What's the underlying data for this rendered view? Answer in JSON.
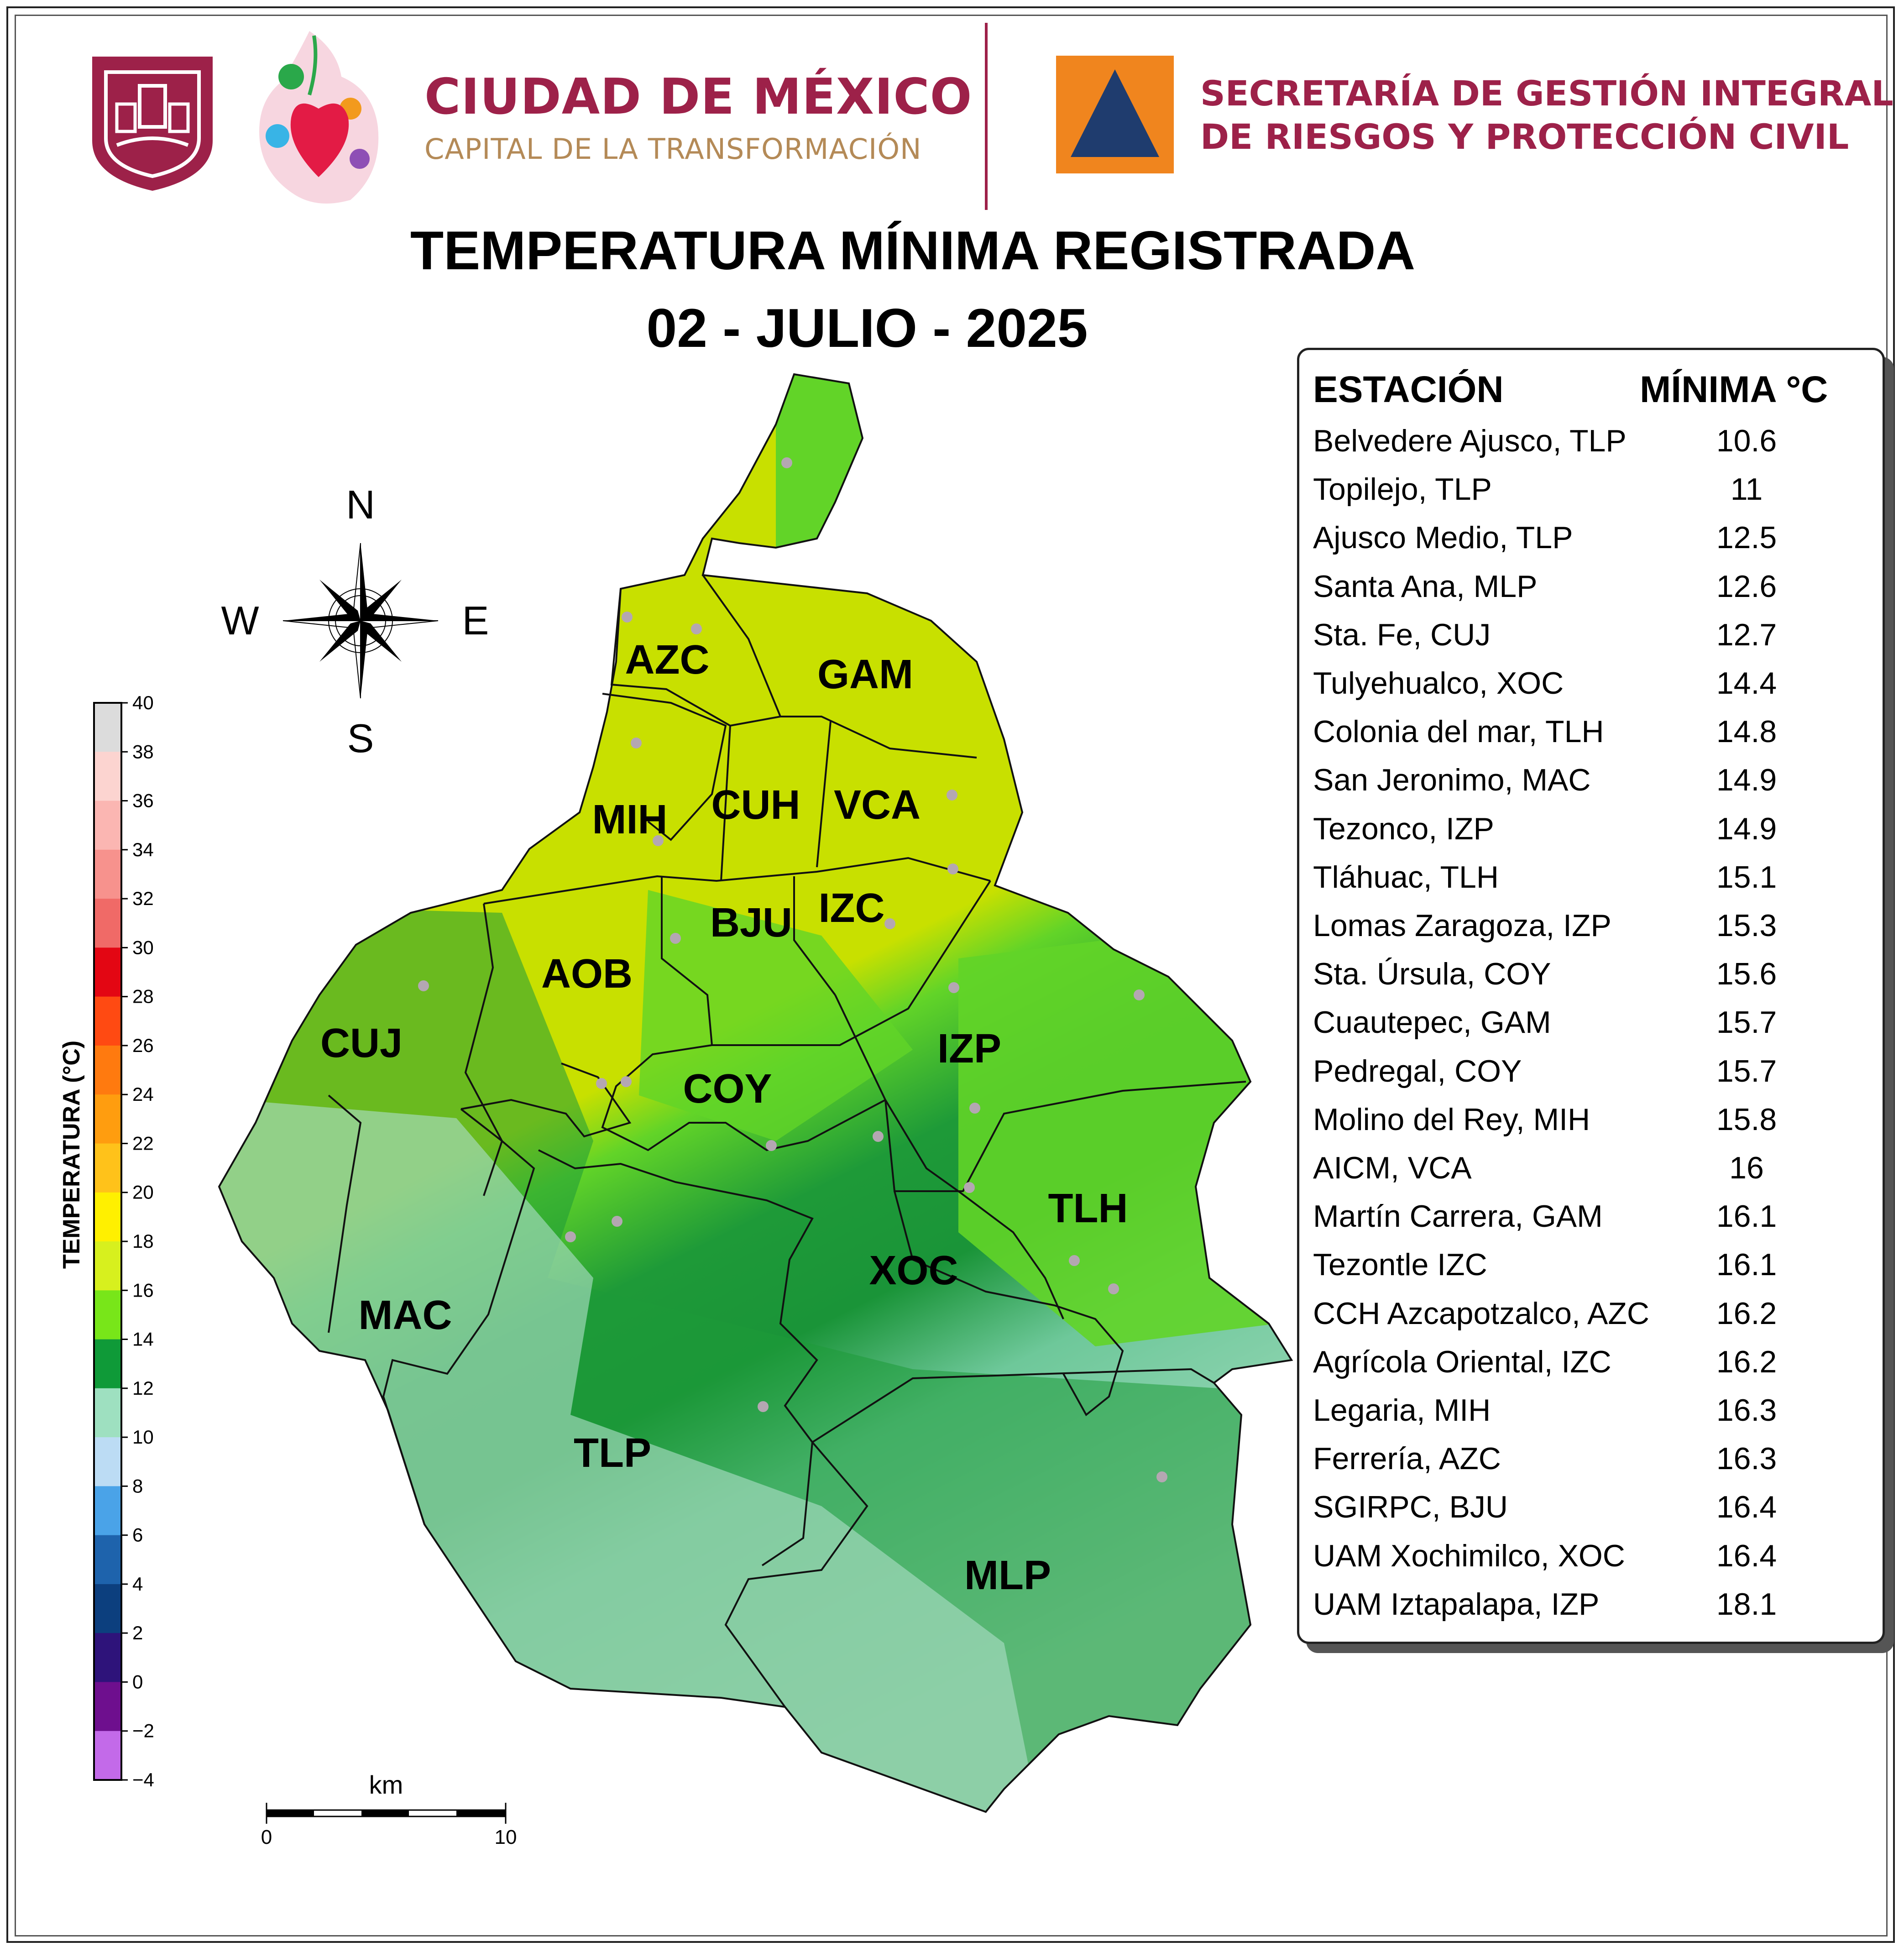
{
  "header": {
    "city_name": "CIUDAD DE MÉXICO",
    "city_tagline": "CAPITAL DE LA TRANSFORMACIÓN",
    "agency_line1": "SECRETARÍA DE GESTIÓN INTEGRAL",
    "agency_line2": "DE RIESGOS Y PROTECCIÓN CIVIL",
    "brand_color": "#9d2149",
    "tagline_color": "#b48a57",
    "agency_logo_colors": [
      "#f0851e",
      "#1f3c6e"
    ]
  },
  "title": "TEMPERATURA MÍNIMA REGISTRADA",
  "subtitle": "02 - JULIO - 2025",
  "compass": {
    "n": "N",
    "s": "S",
    "e": "E",
    "w": "W"
  },
  "scale_bar": {
    "unit": "km",
    "start": "0",
    "end": "10"
  },
  "colorbar": {
    "title": "TEMPERATURA (°C)",
    "ticks": [
      "40",
      "38",
      "36",
      "34",
      "32",
      "30",
      "28",
      "26",
      "24",
      "22",
      "20",
      "18",
      "16",
      "14",
      "12",
      "10",
      "8",
      "6",
      "4",
      "2",
      "0",
      "−2",
      "−4"
    ],
    "colors": [
      "#dcdcdc",
      "#fcd4d0",
      "#fbb6b2",
      "#f7928d",
      "#f06a67",
      "#e30613",
      "#ff4a12",
      "#ff7a0f",
      "#ff9d0f",
      "#ffc21a",
      "#fff000",
      "#d7f01e",
      "#78e619",
      "#0f9a38",
      "#9ee0c0",
      "#bcdcf4",
      "#4aa3e8",
      "#1e63ac",
      "#0c3f7e",
      "#2e137a",
      "#6e0f8e",
      "#c36ae9"
    ]
  },
  "municipalities": [
    "AZC",
    "GAM",
    "MIH",
    "CUH",
    "VCA",
    "BJU",
    "IZC",
    "AOB",
    "CUJ",
    "COY",
    "IZP",
    "TLH",
    "XOC",
    "MAC",
    "TLP",
    "MLP"
  ],
  "table": {
    "header_station": "ESTACIÓN",
    "header_min": "MÍNIMA °C",
    "rows": [
      {
        "station": "Belvedere Ajusco, TLP",
        "min": "10.6"
      },
      {
        "station": "Topilejo, TLP",
        "min": "11"
      },
      {
        "station": "Ajusco Medio, TLP",
        "min": "12.5"
      },
      {
        "station": "Santa Ana, MLP",
        "min": "12.6"
      },
      {
        "station": "Sta. Fe, CUJ",
        "min": "12.7"
      },
      {
        "station": "Tulyehualco, XOC",
        "min": "14.4"
      },
      {
        "station": "Colonia del mar, TLH",
        "min": "14.8"
      },
      {
        "station": "San Jeronimo, MAC",
        "min": "14.9"
      },
      {
        "station": "Tezonco, IZP",
        "min": "14.9"
      },
      {
        "station": "Tláhuac, TLH",
        "min": "15.1"
      },
      {
        "station": "Lomas Zaragoza, IZP",
        "min": "15.3"
      },
      {
        "station": "Sta. Úrsula, COY",
        "min": "15.6"
      },
      {
        "station": "Cuautepec, GAM",
        "min": "15.7"
      },
      {
        "station": "Pedregal, COY",
        "min": "15.7"
      },
      {
        "station": "Molino del Rey, MIH",
        "min": "15.8"
      },
      {
        "station": "AICM, VCA",
        "min": "16"
      },
      {
        "station": "Martín Carrera, GAM",
        "min": "16.1"
      },
      {
        "station": "Tezontle IZC",
        "min": "16.1"
      },
      {
        "station": "CCH Azcapotzalco, AZC",
        "min": "16.2"
      },
      {
        "station": "Agrícola Oriental, IZC",
        "min": "16.2"
      },
      {
        "station": "Legaria, MIH",
        "min": "16.3"
      },
      {
        "station": "Ferrería, AZC",
        "min": "16.3"
      },
      {
        "station": "SGIRPC, BJU",
        "min": "16.4"
      },
      {
        "station": "UAM Xochimilco, XOC",
        "min": "16.4"
      },
      {
        "station": "UAM Iztapalapa, IZP",
        "min": "18.1"
      }
    ]
  }
}
